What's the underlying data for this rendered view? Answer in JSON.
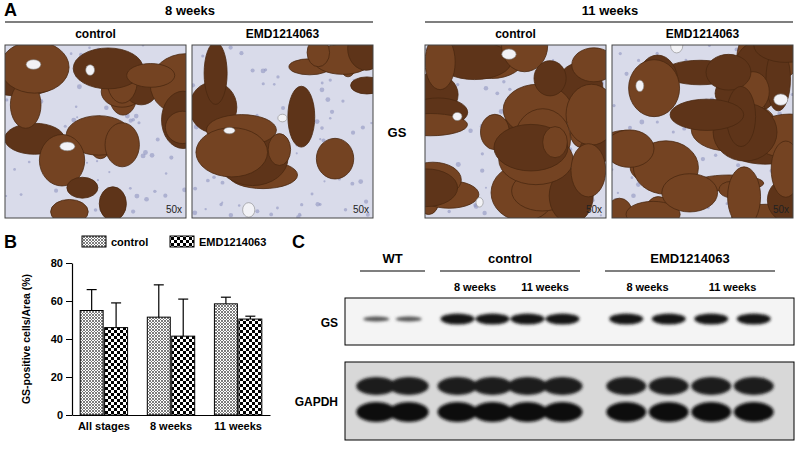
{
  "panel_labels": [
    "A",
    "B",
    "C"
  ],
  "panel_a": {
    "groups": [
      {
        "title": "8 weeks",
        "columns": [
          "control",
          "EMD1214063"
        ]
      },
      {
        "title": "11 weeks",
        "columns": [
          "control",
          "EMD1214063"
        ]
      }
    ],
    "stain": "GS",
    "magnification": "50x"
  },
  "chart_data": {
    "type": "bar",
    "categories": [
      "All stages",
      "8 weeks",
      "11 weeks"
    ],
    "series": [
      {
        "name": "control",
        "color": "#6e6e6e",
        "values": [
          55,
          51.5,
          58.5
        ],
        "errors": [
          11,
          17,
          3.5
        ]
      },
      {
        "name": "EMD1214063",
        "color": "#000000",
        "values": [
          46,
          41.5,
          50.5
        ],
        "errors": [
          13,
          19.5,
          1.5
        ]
      }
    ],
    "ylabel": "GS-positive cells/Area (%)",
    "ylim": [
      0,
      80
    ],
    "yticks": [
      0,
      20,
      40,
      60,
      80
    ],
    "legend": "top"
  },
  "panel_c": {
    "groups": [
      {
        "label": "WT",
        "timepoints": []
      },
      {
        "label": "control",
        "timepoints": [
          "8 weeks",
          "11 weeks"
        ]
      },
      {
        "label": "EMD1214063",
        "timepoints": [
          "8 weeks",
          "11 weeks"
        ]
      }
    ],
    "proteins": [
      "GS",
      "GAPDH"
    ]
  }
}
